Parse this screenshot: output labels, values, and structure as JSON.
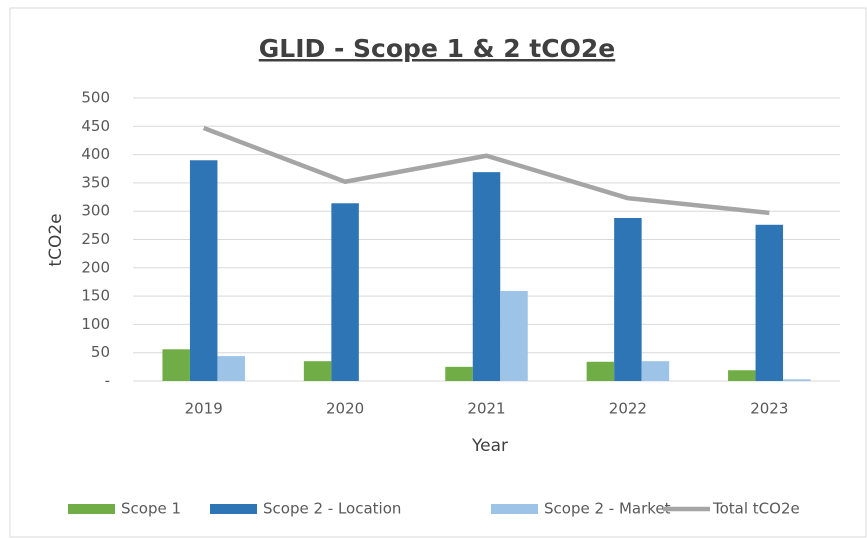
{
  "chart_data": {
    "type": "bar",
    "title": "GLID - Scope 1 & 2 tCO2e",
    "x_label": "Year",
    "y_label": "tCO2e",
    "categories": [
      "2019",
      "2020",
      "2021",
      "2022",
      "2023"
    ],
    "series": [
      {
        "name": "Scope 1",
        "color": "#70ad47",
        "type": "bar",
        "values": [
          56,
          35,
          25,
          34,
          19
        ]
      },
      {
        "name": "Scope 2 - Location",
        "color": "#2e75b6",
        "type": "bar",
        "values": [
          390,
          314,
          369,
          288,
          276
        ]
      },
      {
        "name": "Scope 2 - Market",
        "color": "#9dc3e6",
        "type": "bar",
        "values": [
          44,
          0,
          159,
          35,
          3
        ]
      },
      {
        "name": "Total tCO2e",
        "color": "#a5a5a5",
        "type": "line",
        "values": [
          447,
          352,
          398,
          323,
          297
        ]
      }
    ],
    "ylim": [
      0,
      500
    ],
    "yticks": [
      {
        "value": 0,
        "label": "-"
      },
      50,
      100,
      150,
      200,
      250,
      300,
      350,
      400,
      450,
      500
    ],
    "grid": true,
    "legend": "bottom"
  }
}
